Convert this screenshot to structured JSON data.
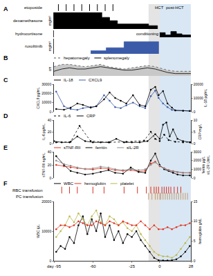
{
  "chart_data": {
    "type": "multi-panel",
    "xlim": [
      -95,
      28
    ],
    "xticks": [
      {
        "value": -95,
        "label": "day -95"
      },
      -60,
      -25,
      0,
      28
    ],
    "regions": [
      {
        "name": "conditioning",
        "x": [
          -10,
          0
        ],
        "color": "#e4e4e4"
      },
      {
        "name": "post-HCT",
        "x": [
          0,
          28
        ],
        "color": "#d9e7f4"
      }
    ],
    "annotations": [
      {
        "text": "HCT",
        "x": 0
      }
    ],
    "panels": [
      {
        "label": "A",
        "rows": [
          {
            "title": "etoposide",
            "type": "event",
            "color": "#000000",
            "x": [
              -91,
              -84,
              -77,
              -70,
              -63,
              -56,
              -49,
              -42
            ]
          },
          {
            "title": "dexamethasone",
            "type": "step",
            "color": "#000000",
            "ylabel": "mg/m²",
            "ylim": [
              0,
              10
            ],
            "tick_labels": false,
            "x": [
              -95,
              -52,
              -45,
              -38,
              -10,
              -2
            ],
            "values": [
              10,
              7,
              5,
              3,
              2,
              0
            ]
          },
          {
            "title": "hydrocortisone",
            "type": "step",
            "color": "#000000",
            "ylim": [
              0,
              3
            ],
            "tick_labels": false,
            "x": [
              0,
              5,
              10,
              15,
              20,
              28
            ],
            "values": [
              2,
              1,
              2.5,
              1.5,
              1,
              1
            ]
          },
          {
            "title": "ruxolitinib",
            "type": "step",
            "color": "#3b5ba9",
            "ylabel": "mg/m²",
            "ylim": [
              0,
              25
            ],
            "tick_labels": false,
            "x": [
              -62,
              -48,
              -32,
              -1
            ],
            "values": [
              5,
              10,
              20,
              0
            ]
          }
        ]
      },
      {
        "label": "B",
        "type": "area",
        "color": "#c8c8c8",
        "ylabel": "cm",
        "ylim": [
          0,
          6
        ],
        "tick_labels": false,
        "legend": "top left",
        "x": [
          -95,
          -88,
          -81,
          -74,
          -67,
          -60,
          -53,
          -46,
          -39,
          -32,
          -25,
          -18,
          -11,
          -4,
          0,
          7,
          14,
          21,
          28
        ],
        "series": [
          {
            "name": "hepatomegaly",
            "color": "#555555",
            "line_style": "dotted",
            "values": [
              4,
              5,
              5,
              4.5,
              4,
              4.5,
              5,
              4,
              3.5,
              3,
              3.5,
              4,
              4.5,
              4,
              3.5,
              2.5,
              2,
              2,
              2
            ]
          },
          {
            "name": "splenomegaly",
            "color": "#000000",
            "line_style": "solid",
            "values": [
              2,
              3,
              3.5,
              3,
              3,
              3.5,
              4,
              3.5,
              3,
              2.5,
              2.5,
              3,
              3.5,
              3,
              2.5,
              1.5,
              1,
              1,
              1
            ]
          }
        ]
      },
      {
        "label": "C",
        "type": "line",
        "ylabel": "CXCL9 pg/mL",
        "ylim": [
          0,
          30000
        ],
        "yticks": [
          0,
          10000,
          20000,
          30000
        ],
        "y2label": "IL-18 pg/mL",
        "y2lim": [
          0,
          20000
        ],
        "y2ticks": [
          0,
          10000,
          20000
        ],
        "legend": "top left",
        "x": [
          -93,
          -86,
          -80,
          -74,
          -69,
          -62,
          -57,
          -50,
          -45,
          -40,
          -35,
          -30,
          -24,
          -18,
          -13,
          -8,
          -4,
          -1,
          3,
          7,
          11,
          14,
          21,
          27
        ],
        "series": [
          {
            "name": "IL-18",
            "color": "#000000",
            "axis": "y2",
            "marker": "circle",
            "values": [
              2000,
              1500,
              3000,
              6000,
              5000,
              3000,
              4000,
              9000,
              14000,
              10000,
              8000,
              6000,
              12000,
              5000,
              4000,
              16000,
              18000,
              12000,
              15000,
              6000,
              3000,
              1000,
              800,
              500
            ]
          },
          {
            "name": "CXCL9",
            "color": "#3b5ba9",
            "marker": "circle",
            "values": [
              22000,
              6000,
              3000,
              2000,
              4000,
              5000,
              6000,
              18000,
              12000,
              5000,
              4000,
              7000,
              10000,
              6000,
              4000,
              17000,
              23000,
              15000,
              9000,
              5000,
              2000,
              1500,
              1000,
              1000
            ]
          }
        ]
      },
      {
        "label": "D",
        "type": "line",
        "ylabel": "IL-6 pg/mL",
        "ylim": [
          0,
          40
        ],
        "yticks": [
          0,
          20,
          40
        ],
        "y2label": "CRP mg/L",
        "y2lim": [
          0,
          10
        ],
        "y2ticks": [
          0,
          5,
          10
        ],
        "legend": "top left",
        "series": [
          {
            "name": "IL-6",
            "color": "#000000",
            "marker": "circle",
            "line_style": "dotted",
            "x": [
              -93,
              -80,
              -72,
              -62,
              -45,
              -30,
              -14,
              -8,
              -4,
              0,
              4,
              8,
              14,
              21,
              27
            ],
            "values": [
              2,
              3,
              30,
              4,
              2,
              3,
              5,
              20,
              8,
              4,
              15,
              6,
              3,
              2,
              2
            ]
          },
          {
            "name": "CRP",
            "color": "#000000",
            "marker": "circle",
            "line_style": "solid",
            "axis": "y2",
            "x": [
              -95,
              -88,
              -81,
              -74,
              -67,
              -60,
              -53,
              -46,
              -39,
              -32,
              -25,
              -18,
              -11,
              -4,
              0,
              3,
              6,
              9,
              12,
              16,
              21,
              28
            ],
            "values": [
              1,
              0.5,
              0.5,
              3,
              1,
              0.5,
              0.5,
              0.5,
              2,
              0.5,
              0.5,
              0.5,
              1,
              4,
              2,
              8,
              9,
              3,
              6,
              2,
              1,
              0.5
            ]
          }
        ]
      },
      {
        "label": "E",
        "type": "line",
        "ylabel": "sTNF-RII ng/mL",
        "ylim": [
          0,
          40
        ],
        "yticks": [
          0,
          20,
          40
        ],
        "y2label": [
          "ferritin µg/L",
          "sIL-2R U/mL"
        ],
        "y2lim": [
          0,
          3000
        ],
        "y2ticks": [
          0,
          1000,
          2000,
          3000
        ],
        "legend": "top left",
        "x": [
          -93,
          -86,
          -80,
          -74,
          -67,
          -60,
          -53,
          -46,
          -40,
          -33,
          -26,
          -19,
          -13,
          -8,
          -4,
          0,
          4,
          8,
          12,
          16,
          21,
          27
        ],
        "series": [
          {
            "name": "sTNF-RII",
            "color": "#e0301e",
            "marker": "circle",
            "values": [
              20,
              18,
              16,
              15,
              14,
              13,
              15,
              14,
              12,
              11,
              12,
              10,
              11,
              22,
              25,
              18,
              15,
              12,
              10,
              9,
              8,
              8
            ]
          },
          {
            "name": "ferritin",
            "color": "#000000",
            "marker": "circle",
            "axis": "y2",
            "values": [
              2500,
              1500,
              800,
              600,
              400,
              500,
              700,
              900,
              600,
              500,
              1200,
              700,
              600,
              2000,
              2800,
              1500,
              1000,
              800,
              600,
              400,
              300,
              300
            ]
          },
          {
            "name": "sIL-2R",
            "color": "#8c8c8c",
            "marker": "circle",
            "axis": "y2",
            "values": [
              2000,
              1600,
              1400,
              1200,
              1000,
              1100,
              1300,
              1200,
              1000,
              900,
              1000,
              900,
              1000,
              1500,
              1800,
              1400,
              1100,
              900,
              800,
              700,
              600,
              600
            ]
          }
        ]
      },
      {
        "label": "F",
        "type": "line",
        "ylabel": "WBC /µL",
        "ylim": [
          0,
          20000
        ],
        "yticks": [
          0,
          10000,
          20000
        ],
        "y2label": "hemoglobin g/dL",
        "y2lim": [
          0,
          15
        ],
        "y2ticks": [
          0,
          5,
          10,
          15
        ],
        "legend": "top left",
        "rows": [
          {
            "title": "RBC transfusion",
            "type": "event",
            "color": "#d7301f",
            "x": [
              -88,
              -81,
              -74,
              -60,
              -50,
              -32,
              -20,
              -12,
              -8,
              -5,
              -3,
              -1,
              2,
              4,
              6,
              8,
              10,
              13,
              16,
              19
            ]
          },
          {
            "title": "PC transfusion",
            "type": "event",
            "color": "#c49a6c",
            "x": [
              -10,
              -7,
              -4,
              -2,
              0,
              1,
              3,
              5,
              7,
              9,
              11,
              13,
              15,
              17,
              19,
              21,
              23,
              25
            ]
          }
        ],
        "x": [
          -93,
          -89,
          -85,
          -81,
          -77,
          -73,
          -69,
          -65,
          -61,
          -57,
          -53,
          -49,
          -45,
          -41,
          -37,
          -33,
          -29,
          -25,
          -21,
          -17,
          -13,
          -9,
          -5,
          -1,
          3,
          7,
          11,
          15,
          19,
          23,
          27
        ],
        "series": [
          {
            "name": "WBC",
            "color": "#000000",
            "marker": "circle",
            "values": [
              3000,
              5000,
              4000,
              8000,
              6000,
              12000,
              15000,
              9000,
              14000,
              10000,
              16000,
              8000,
              12000,
              7000,
              10000,
              6000,
              9000,
              8000,
              10000,
              7000,
              5000,
              3000,
              1000,
              200,
              100,
              100,
              200,
              500,
              1500,
              3000,
              5000
            ]
          },
          {
            "name": "hemoglobin",
            "color": "#e0301e",
            "marker": "circle",
            "axis": "y2",
            "values": [
              8,
              9,
              9,
              8.5,
              9,
              10,
              9.5,
              9,
              9,
              10,
              9.5,
              9,
              10,
              9.5,
              9,
              10,
              9.5,
              9,
              9,
              10,
              9,
              8,
              9,
              8,
              8,
              8.5,
              8,
              8.5,
              9,
              9,
              9.5
            ]
          },
          {
            "name": "platelet",
            "color": "#b8b84a",
            "marker": "circle",
            "values": [
              8000,
              10000,
              12000,
              15000,
              13000,
              16000,
              14000,
              12000,
              15000,
              17000,
              13000,
              12000,
              15000,
              14000,
              12000,
              13000,
              11000,
              10000,
              12000,
              9000,
              7000,
              5000,
              3000,
              2000,
              1500,
              1500,
              1000,
              2000,
              4000,
              6000,
              8000
            ]
          }
        ]
      }
    ]
  }
}
